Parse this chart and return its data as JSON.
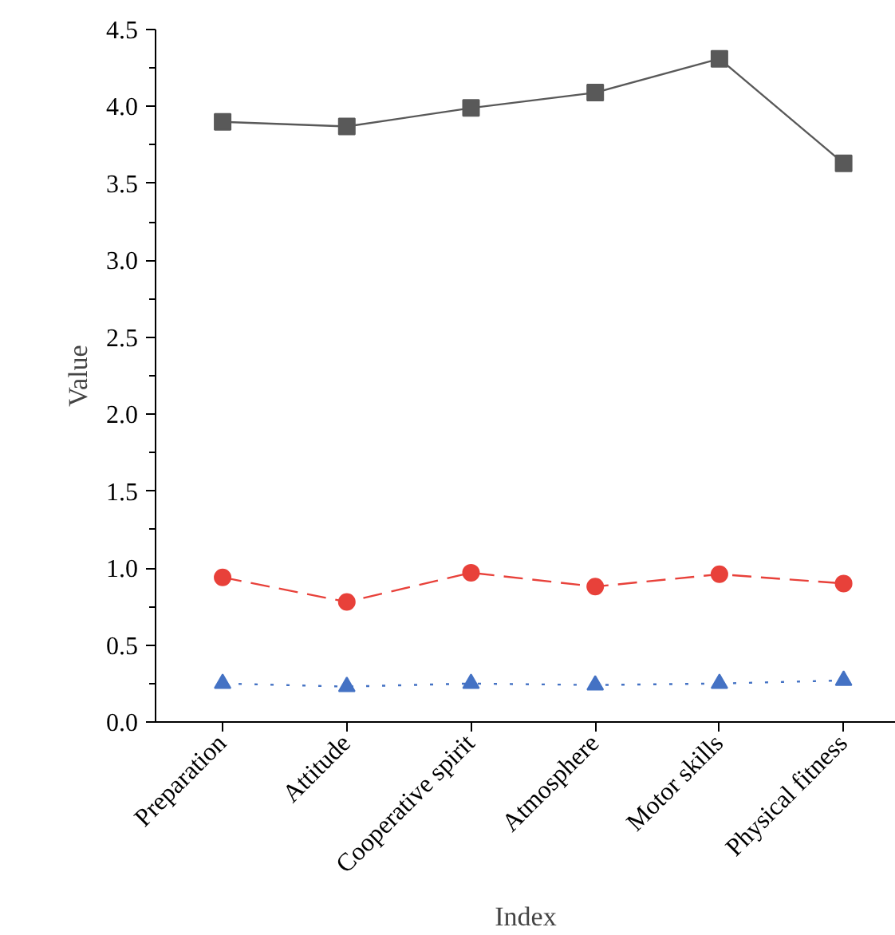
{
  "chart_data": {
    "type": "line",
    "xlabel": "Index",
    "ylabel": "Value",
    "categories": [
      "Preparation",
      "Attitude",
      "Cooperative spirit",
      "Atmosphere",
      "Motor skills",
      "Physical fitness"
    ],
    "ylim": [
      0,
      4.5
    ],
    "yticks": [
      {
        "value": 0,
        "label": "0.0"
      },
      {
        "value": 0.5,
        "label": "0.5"
      },
      {
        "value": 1,
        "label": "1.0"
      },
      {
        "value": 1.5,
        "label": "1.5"
      },
      {
        "value": 2,
        "label": "2.0"
      },
      {
        "value": 2.5,
        "label": "2.5"
      },
      {
        "value": 3,
        "label": "3.0"
      },
      {
        "value": 3.5,
        "label": "3.5"
      },
      {
        "value": 4,
        "label": "4.0"
      },
      {
        "value": 4.5,
        "label": "4.5"
      }
    ],
    "grid": false,
    "series": [
      {
        "color": "#595959",
        "marker": "square",
        "line_style": "solid",
        "values": [
          3.9,
          3.87,
          3.99,
          4.09,
          4.31,
          3.63
        ]
      },
      {
        "color": "#e8413a",
        "marker": "circle",
        "line_style": "dashed",
        "values": [
          0.94,
          0.78,
          0.97,
          0.88,
          0.96,
          0.9
        ]
      },
      {
        "color": "#4472c4",
        "marker": "triangle",
        "line_style": "dotted",
        "values": [
          0.25,
          0.23,
          0.25,
          0.24,
          0.25,
          0.27
        ]
      }
    ]
  }
}
